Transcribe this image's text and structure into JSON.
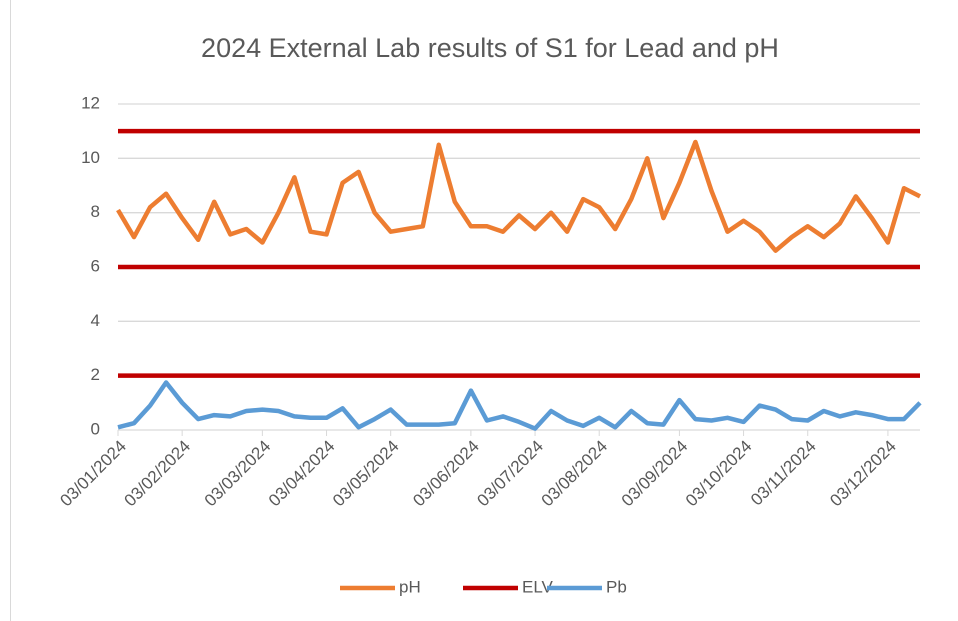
{
  "chart_data": {
    "type": "line",
    "title": "2024 External Lab results of S1 for Lead and pH",
    "categories": [
      "03/01/2024",
      null,
      null,
      null,
      "03/02/2024",
      null,
      null,
      null,
      null,
      "03/03/2024",
      null,
      null,
      null,
      "03/04/2024",
      null,
      null,
      null,
      "03/05/2024",
      null,
      null,
      null,
      null,
      "03/06/2024",
      null,
      null,
      null,
      "03/07/2024",
      null,
      null,
      null,
      "03/08/2024",
      null,
      null,
      null,
      null,
      "03/09/2024",
      null,
      null,
      null,
      "03/10/2024",
      null,
      null,
      null,
      "03/11/2024",
      null,
      null,
      null,
      null,
      "03/12/2024",
      null,
      null
    ],
    "series": [
      {
        "name": "pH",
        "color": "#ed7d31",
        "values": [
          8.1,
          7.1,
          8.2,
          8.7,
          7.8,
          7.0,
          8.4,
          7.2,
          7.4,
          6.9,
          8.0,
          9.3,
          7.3,
          7.2,
          9.1,
          9.5,
          8.0,
          7.3,
          7.4,
          7.5,
          10.5,
          8.4,
          7.5,
          7.5,
          7.3,
          7.9,
          7.4,
          8.0,
          7.3,
          8.5,
          8.2,
          7.4,
          8.5,
          10.0,
          7.8,
          9.1,
          10.6,
          8.8,
          7.3,
          7.7,
          7.3,
          6.6,
          7.1,
          7.5,
          7.1,
          7.6,
          8.6,
          7.8,
          6.9,
          8.9,
          8.6
        ]
      },
      {
        "name": "ELV",
        "color": "#c00000",
        "levels": [
          11,
          6,
          2
        ]
      },
      {
        "name": "Pb",
        "color": "#5b9bd5",
        "values": [
          0.1,
          0.25,
          0.9,
          1.75,
          1.0,
          0.4,
          0.55,
          0.5,
          0.7,
          0.75,
          0.7,
          0.5,
          0.45,
          0.45,
          0.8,
          0.1,
          0.4,
          0.75,
          0.2,
          0.2,
          0.2,
          0.25,
          1.45,
          0.35,
          0.5,
          0.3,
          0.05,
          0.7,
          0.35,
          0.15,
          0.45,
          0.1,
          0.7,
          0.25,
          0.2,
          1.1,
          0.4,
          0.35,
          0.45,
          0.3,
          0.9,
          0.75,
          0.4,
          0.35,
          0.7,
          0.5,
          0.65,
          0.55,
          0.4,
          0.4,
          1.0
        ]
      }
    ],
    "ylim": [
      0,
      12
    ],
    "yticks": [
      0,
      2,
      4,
      6,
      8,
      10,
      12
    ],
    "grid": true,
    "legend": "bottom"
  }
}
